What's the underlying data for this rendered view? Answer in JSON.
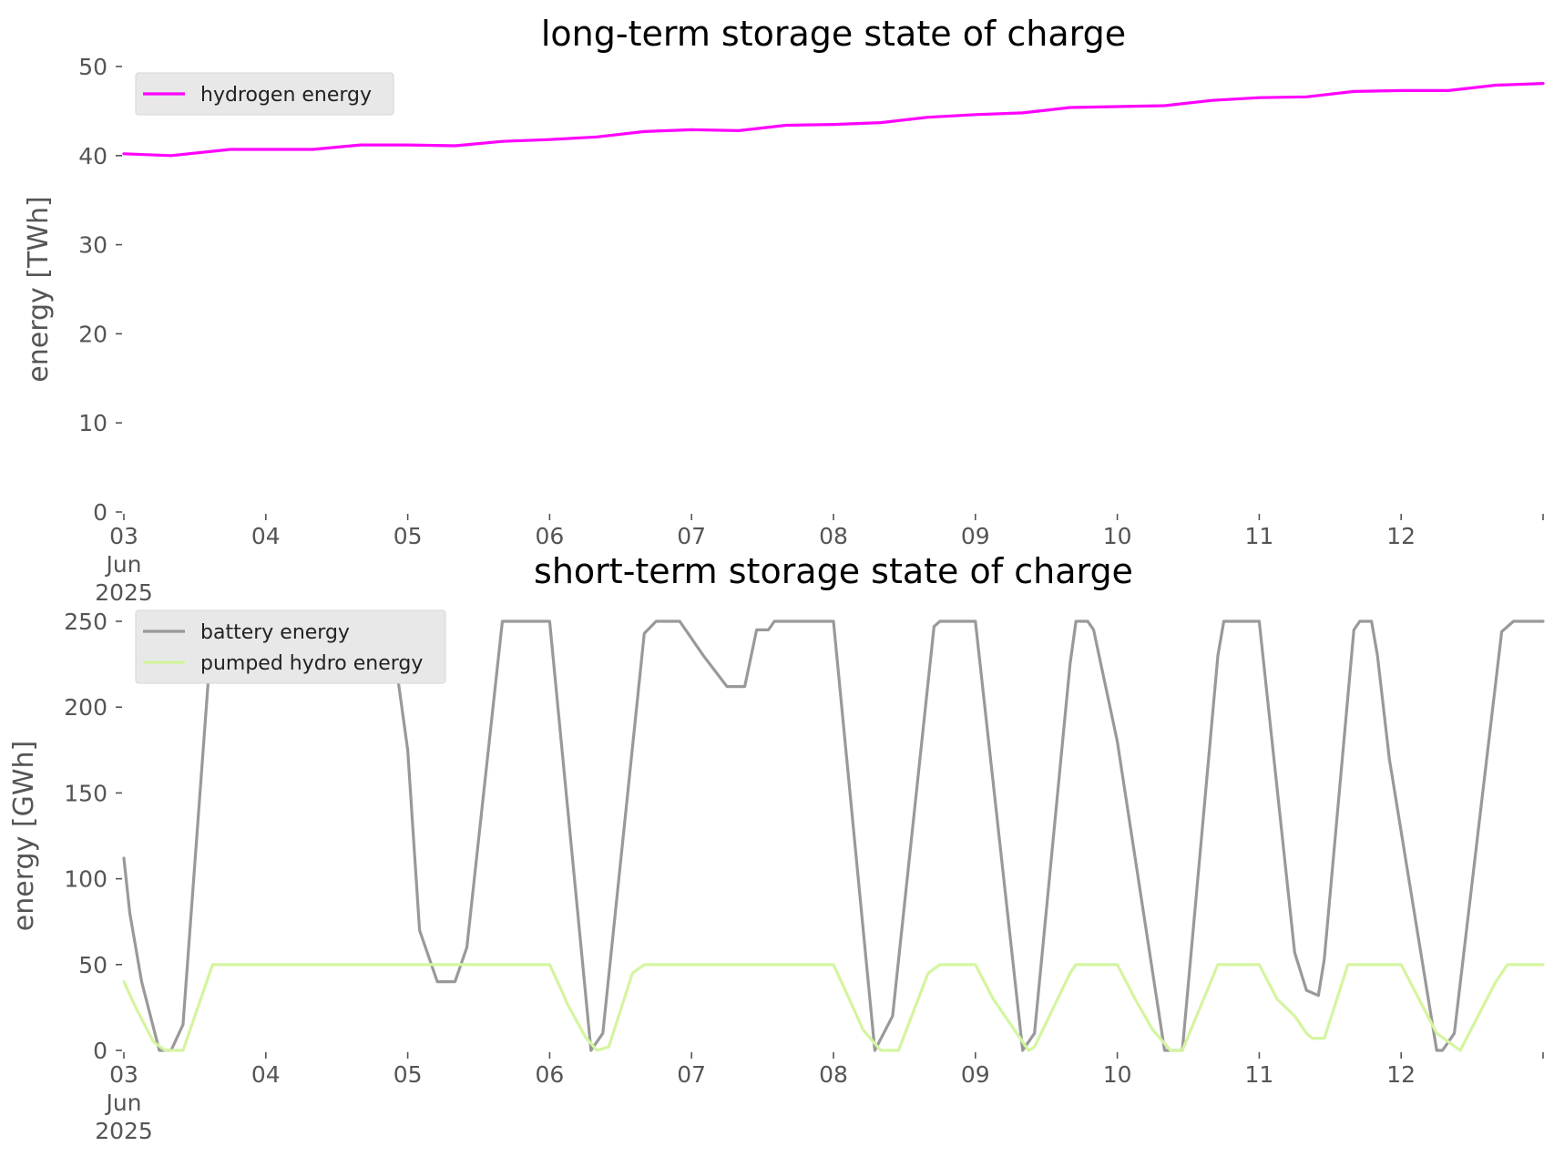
{
  "chart_data": [
    {
      "type": "line",
      "title": "long-term storage state of charge",
      "xlabel": "",
      "ylabel": "energy [TWh]",
      "ylim": [
        0,
        50
      ],
      "yticks": [
        0,
        10,
        20,
        30,
        40,
        50
      ],
      "xlim": [
        "2025-06-03",
        "2025-06-13"
      ],
      "xticks": [
        "2025-06-03",
        "2025-06-04",
        "2025-06-05",
        "2025-06-06",
        "2025-06-07",
        "2025-06-08",
        "2025-06-09",
        "2025-06-10",
        "2025-06-11",
        "2025-06-12",
        "2025-06-13"
      ],
      "xtick_labels": [
        "03",
        "04",
        "05",
        "06",
        "07",
        "08",
        "09",
        "10",
        "11",
        "12",
        ""
      ],
      "x_first_label_lines": [
        "03",
        "Jun",
        "2025"
      ],
      "grid": false,
      "legend_position": "top-left",
      "series": [
        {
          "name": "hydrogen energy",
          "color": "#ff00ff",
          "x": [
            "2025-06-03 00:00",
            "2025-06-03 08:00",
            "2025-06-03 18:00",
            "2025-06-04 00:00",
            "2025-06-04 08:00",
            "2025-06-04 16:00",
            "2025-06-05 00:00",
            "2025-06-05 08:00",
            "2025-06-05 16:00",
            "2025-06-06 00:00",
            "2025-06-06 08:00",
            "2025-06-06 16:00",
            "2025-06-07 00:00",
            "2025-06-07 08:00",
            "2025-06-07 16:00",
            "2025-06-08 00:00",
            "2025-06-08 08:00",
            "2025-06-08 16:00",
            "2025-06-09 00:00",
            "2025-06-09 08:00",
            "2025-06-09 16:00",
            "2025-06-10 00:00",
            "2025-06-10 08:00",
            "2025-06-10 16:00",
            "2025-06-11 00:00",
            "2025-06-11 08:00",
            "2025-06-11 16:00",
            "2025-06-12 00:00",
            "2025-06-12 08:00",
            "2025-06-12 16:00",
            "2025-06-13 00:00"
          ],
          "values": [
            40.2,
            40.0,
            40.7,
            40.7,
            40.7,
            41.2,
            41.2,
            41.1,
            41.6,
            41.8,
            42.1,
            42.7,
            42.9,
            42.8,
            43.4,
            43.5,
            43.7,
            44.3,
            44.6,
            44.8,
            45.4,
            45.5,
            45.6,
            46.2,
            46.5,
            46.6,
            47.2,
            47.3,
            47.3,
            47.9,
            48.1
          ]
        }
      ]
    },
    {
      "type": "line",
      "title": "short-term storage state of charge",
      "xlabel": "",
      "ylabel": "energy [GWh]",
      "ylim": [
        0,
        250
      ],
      "yticks": [
        0,
        50,
        100,
        150,
        200,
        250
      ],
      "xlim": [
        "2025-06-03",
        "2025-06-13"
      ],
      "xticks": [
        "2025-06-03",
        "2025-06-04",
        "2025-06-05",
        "2025-06-06",
        "2025-06-07",
        "2025-06-08",
        "2025-06-09",
        "2025-06-10",
        "2025-06-11",
        "2025-06-12",
        "2025-06-13"
      ],
      "xtick_labels": [
        "03",
        "04",
        "05",
        "06",
        "07",
        "08",
        "09",
        "10",
        "11",
        "12",
        ""
      ],
      "x_first_label_lines": [
        "03",
        "Jun",
        "2025"
      ],
      "grid": false,
      "legend_position": "top-left",
      "series": [
        {
          "name": "battery energy",
          "color": "#999999",
          "x": [
            "2025-06-03 00:00",
            "2025-06-03 01:00",
            "2025-06-03 03:00",
            "2025-06-03 06:00",
            "2025-06-03 08:00",
            "2025-06-03 10:00",
            "2025-06-03 15:00",
            "2025-06-04 16:00",
            "2025-06-04 18:00",
            "2025-06-04 21:00",
            "2025-06-05 00:00",
            "2025-06-05 02:00",
            "2025-06-05 05:00",
            "2025-06-05 08:00",
            "2025-06-05 10:00",
            "2025-06-05 16:00",
            "2025-06-05 18:00",
            "2025-06-06 00:00",
            "2025-06-06 07:00",
            "2025-06-06 09:00",
            "2025-06-06 16:00",
            "2025-06-06 18:00",
            "2025-06-06 22:00",
            "2025-06-07 02:00",
            "2025-06-07 06:00",
            "2025-06-07 09:00",
            "2025-06-07 11:00",
            "2025-06-07 13:00",
            "2025-06-07 14:00",
            "2025-06-07 15:00",
            "2025-06-07 16:00",
            "2025-06-08 00:00",
            "2025-06-08 07:00",
            "2025-06-08 10:00",
            "2025-06-08 17:00",
            "2025-06-08 18:00",
            "2025-06-08 21:00",
            "2025-06-09 00:00",
            "2025-06-09 08:00",
            "2025-06-09 10:00",
            "2025-06-09 16:00",
            "2025-06-09 17:00",
            "2025-06-09 19:00",
            "2025-06-09 20:00",
            "2025-06-10 00:00",
            "2025-06-10 08:00",
            "2025-06-10 11:00",
            "2025-06-10 17:00",
            "2025-06-10 18:00",
            "2025-06-11 00:00",
            "2025-06-11 06:00",
            "2025-06-11 08:00",
            "2025-06-11 10:00",
            "2025-06-11 11:00",
            "2025-06-11 16:00",
            "2025-06-11 17:00",
            "2025-06-11 19:00",
            "2025-06-11 20:00",
            "2025-06-11 22:00",
            "2025-06-12 06:00",
            "2025-06-12 07:00",
            "2025-06-12 09:00",
            "2025-06-12 17:00",
            "2025-06-12 19:00",
            "2025-06-13 00:00"
          ],
          "values": [
            112,
            80,
            40,
            0,
            0,
            15,
            250,
            250,
            250,
            250,
            175,
            70,
            40,
            40,
            60,
            250,
            250,
            250,
            0,
            10,
            243,
            250,
            250,
            230,
            212,
            212,
            245,
            245,
            250,
            250,
            250,
            250,
            0,
            20,
            247,
            250,
            250,
            250,
            0,
            10,
            225,
            250,
            250,
            245,
            180,
            0,
            0,
            230,
            250,
            250,
            57,
            35,
            32,
            53,
            245,
            250,
            250,
            230,
            170,
            0,
            0,
            10,
            244,
            250,
            250
          ]
        },
        {
          "name": "pumped hydro energy",
          "color": "#d4f5a0",
          "x": [
            "2025-06-03 00:00",
            "2025-06-03 02:00",
            "2025-06-03 05:00",
            "2025-06-03 07:00",
            "2025-06-03 10:00",
            "2025-06-03 15:00",
            "2025-06-06 00:00",
            "2025-06-06 02:00",
            "2025-06-06 03:00",
            "2025-06-06 06:00",
            "2025-06-06 08:00",
            "2025-06-06 10:00",
            "2025-06-06 14:00",
            "2025-06-06 16:00",
            "2025-06-08 00:00",
            "2025-06-08 02:00",
            "2025-06-08 05:00",
            "2025-06-08 08:00",
            "2025-06-08 11:00",
            "2025-06-08 16:00",
            "2025-06-08 18:00",
            "2025-06-09 00:00",
            "2025-06-09 03:00",
            "2025-06-09 07:00",
            "2025-06-09 09:00",
            "2025-06-09 10:00",
            "2025-06-09 16:00",
            "2025-06-09 17:00",
            "2025-06-10 00:00",
            "2025-06-10 03:00",
            "2025-06-10 06:00",
            "2025-06-10 09:00",
            "2025-06-10 11:00",
            "2025-06-10 17:00",
            "2025-06-11 00:00",
            "2025-06-11 03:00",
            "2025-06-11 06:00",
            "2025-06-11 08:00",
            "2025-06-11 09:00",
            "2025-06-11 11:00",
            "2025-06-11 15:00",
            "2025-06-12 00:00",
            "2025-06-12 03:00",
            "2025-06-12 06:00",
            "2025-06-12 08:00",
            "2025-06-12 10:00",
            "2025-06-12 16:00",
            "2025-06-12 18:00",
            "2025-06-13 00:00"
          ],
          "values": [
            40,
            25,
            5,
            0,
            0,
            50,
            50,
            35,
            27,
            8,
            0,
            2,
            45,
            50,
            50,
            35,
            12,
            0,
            0,
            45,
            50,
            50,
            30,
            10,
            0,
            2,
            45,
            50,
            50,
            30,
            12,
            0,
            0,
            50,
            50,
            30,
            20,
            10,
            7,
            7,
            50,
            50,
            30,
            10,
            5,
            0,
            40,
            50,
            50
          ]
        }
      ]
    }
  ]
}
